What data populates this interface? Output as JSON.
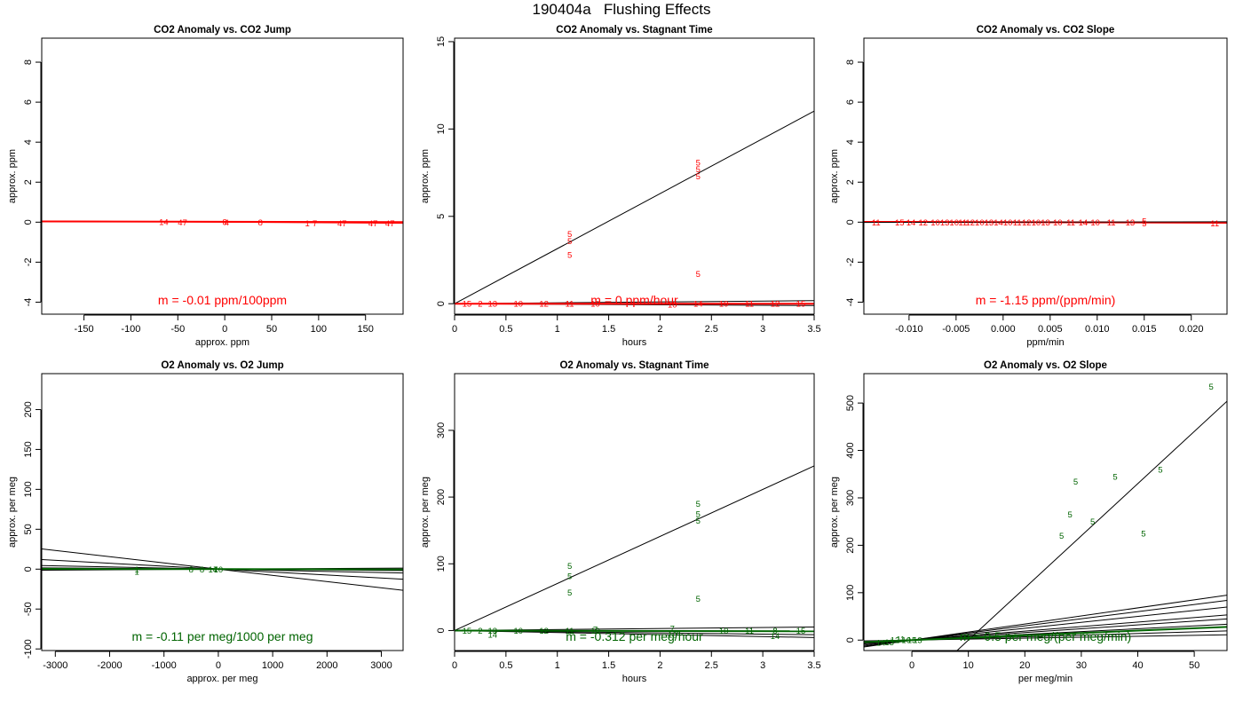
{
  "figure": {
    "title": "190404a   Flushing Effects",
    "colors": {
      "co2": "#ff0000",
      "o2": "#006400",
      "fit": "#000000"
    }
  },
  "chart_data": [
    {
      "type": "scatter",
      "title": "CO2 Anomaly vs. CO2 Jump",
      "xlabel": "approx. ppm",
      "ylabel": "approx. ppm",
      "xlim": [
        -195,
        190
      ],
      "ylim": [
        -4.6,
        9.2
      ],
      "xticks": [
        -150,
        -100,
        -50,
        0,
        50,
        100,
        150
      ],
      "yticks": [
        -4,
        -2,
        0,
        2,
        4,
        6,
        8
      ],
      "annotation": "m = -0.01 ppm/100ppm",
      "color": "#ff0000",
      "points": [
        {
          "x": -65,
          "y": 0.02,
          "label": "14"
        },
        {
          "x": -45,
          "y": 0.0,
          "label": "47"
        },
        {
          "x": 0,
          "y": 0.02,
          "label": "8"
        },
        {
          "x": 2,
          "y": 0.0,
          "label": "4"
        },
        {
          "x": 38,
          "y": 0.0,
          "label": "8"
        },
        {
          "x": 88,
          "y": -0.05,
          "label": "1"
        },
        {
          "x": 96,
          "y": -0.05,
          "label": "7"
        },
        {
          "x": 125,
          "y": -0.05,
          "label": "47"
        },
        {
          "x": 158,
          "y": -0.05,
          "label": "47"
        },
        {
          "x": 176,
          "y": -0.05,
          "label": "47"
        }
      ],
      "lines": [
        {
          "intercept": 0.02,
          "slope": -0.0001,
          "color": "#ff0000",
          "width": 2
        },
        {
          "intercept": 0.0,
          "slope": -0.0003,
          "color": "#ff0000",
          "width": 1
        }
      ]
    },
    {
      "type": "scatter",
      "title": "CO2 Anomaly vs. Stagnant Time",
      "xlabel": "hours",
      "ylabel": "approx. ppm",
      "xlim": [
        0,
        3.5
      ],
      "ylim": [
        -0.6,
        15.2
      ],
      "xticks": [
        0.0,
        0.5,
        1.0,
        1.5,
        2.0,
        2.5,
        3.0,
        3.5
      ],
      "yticks": [
        0,
        5,
        10,
        15
      ],
      "annotation": "m = 0 ppm/hour",
      "color": "#ff0000",
      "points": [
        {
          "x": 2.37,
          "y": 8.1,
          "label": "5"
        },
        {
          "x": 2.37,
          "y": 7.7,
          "label": "5"
        },
        {
          "x": 2.37,
          "y": 7.3,
          "label": "5"
        },
        {
          "x": 1.12,
          "y": 4.0,
          "label": "5"
        },
        {
          "x": 1.12,
          "y": 3.6,
          "label": "5"
        },
        {
          "x": 1.12,
          "y": 2.8,
          "label": "5"
        },
        {
          "x": 2.37,
          "y": 1.7,
          "label": "5"
        },
        {
          "x": 0.12,
          "y": 0.0,
          "label": "15"
        },
        {
          "x": 0.25,
          "y": 0.0,
          "label": "2"
        },
        {
          "x": 0.37,
          "y": 0.0,
          "label": "13"
        },
        {
          "x": 0.62,
          "y": 0.0,
          "label": "10"
        },
        {
          "x": 0.87,
          "y": 0.0,
          "label": "12"
        },
        {
          "x": 1.12,
          "y": 0.0,
          "label": "11"
        },
        {
          "x": 1.37,
          "y": 0.0,
          "label": "10"
        },
        {
          "x": 2.12,
          "y": -0.05,
          "label": "10"
        },
        {
          "x": 2.37,
          "y": 0.0,
          "label": "14"
        },
        {
          "x": 2.62,
          "y": 0.0,
          "label": "10"
        },
        {
          "x": 2.87,
          "y": 0.0,
          "label": "11"
        },
        {
          "x": 3.12,
          "y": 0.0,
          "label": "12"
        },
        {
          "x": 3.37,
          "y": 0.0,
          "label": "15"
        }
      ],
      "lines": [
        {
          "intercept": 0.0,
          "slope": 3.15,
          "color": "#000000",
          "width": 1
        },
        {
          "intercept": 0.0,
          "slope": 0.05,
          "color": "#000000",
          "width": 1
        },
        {
          "intercept": 0.0,
          "slope": -0.03,
          "color": "#000000",
          "width": 1
        },
        {
          "intercept": 0.0,
          "slope": 0.0,
          "color": "#ff0000",
          "width": 2
        }
      ]
    },
    {
      "type": "scatter",
      "title": "CO2 Anomaly vs. CO2 Slope",
      "xlabel": "ppm/min",
      "ylabel": "approx. ppm",
      "xlim": [
        -0.0148,
        0.0238
      ],
      "ylim": [
        -4.6,
        9.2
      ],
      "xticks": [
        -0.01,
        -0.005,
        0.0,
        0.005,
        0.01,
        0.015,
        0.02
      ],
      "xticklabels": [
        "-0.010",
        "-0.005",
        "0.000",
        "0.005",
        "0.010",
        "0.015",
        "0.020"
      ],
      "yticks": [
        -4,
        -2,
        0,
        2,
        4,
        6,
        8
      ],
      "annotation": "m = -1.15 ppm/(ppm/min)",
      "color": "#ff0000",
      "points": [
        {
          "x": -0.0135,
          "y": 0.0,
          "label": "11"
        },
        {
          "x": -0.011,
          "y": 0.0,
          "label": "15"
        },
        {
          "x": -0.0098,
          "y": 0.0,
          "label": "14"
        },
        {
          "x": -0.0085,
          "y": 0.0,
          "label": "12"
        },
        {
          "x": -0.0072,
          "y": 0.0,
          "label": "10"
        },
        {
          "x": -0.0062,
          "y": 0.0,
          "label": "13"
        },
        {
          "x": -0.0052,
          "y": 0.0,
          "label": "10"
        },
        {
          "x": -0.0043,
          "y": 0.0,
          "label": "11"
        },
        {
          "x": -0.0035,
          "y": 0.0,
          "label": "12"
        },
        {
          "x": -0.0025,
          "y": 0.0,
          "label": "10"
        },
        {
          "x": -0.0015,
          "y": 0.0,
          "label": "13"
        },
        {
          "x": -0.0005,
          "y": 0.0,
          "label": "14"
        },
        {
          "x": 0.0005,
          "y": 0.0,
          "label": "10"
        },
        {
          "x": 0.0015,
          "y": 0.0,
          "label": "11"
        },
        {
          "x": 0.0025,
          "y": 0.0,
          "label": "12"
        },
        {
          "x": 0.0035,
          "y": 0.0,
          "label": "10"
        },
        {
          "x": 0.0045,
          "y": 0.0,
          "label": "13"
        },
        {
          "x": 0.0058,
          "y": 0.0,
          "label": "10"
        },
        {
          "x": 0.0072,
          "y": 0.0,
          "label": "11"
        },
        {
          "x": 0.0085,
          "y": 0.0,
          "label": "14"
        },
        {
          "x": 0.0098,
          "y": 0.0,
          "label": "10"
        },
        {
          "x": 0.0115,
          "y": 0.0,
          "label": "11"
        },
        {
          "x": 0.0135,
          "y": 0.0,
          "label": "13"
        },
        {
          "x": 0.015,
          "y": 0.05,
          "label": "5"
        },
        {
          "x": 0.015,
          "y": -0.05,
          "label": "5"
        },
        {
          "x": 0.0225,
          "y": -0.05,
          "label": "11"
        }
      ],
      "lines": [
        {
          "intercept": 0.0,
          "slope": -1.15,
          "color": "#ff0000",
          "width": 2
        },
        {
          "intercept": 0.0,
          "slope": 0.8,
          "color": "#000000",
          "width": 1
        }
      ]
    },
    {
      "type": "scatter",
      "title": "O2 Anomaly vs. O2 Jump",
      "xlabel": "approx. per meg",
      "ylabel": "approx. per meg",
      "xlim": [
        -3250,
        3400
      ],
      "ylim": [
        -102,
        245
      ],
      "xticks": [
        -3000,
        -2000,
        -1000,
        0,
        1000,
        2000,
        3000
      ],
      "yticks": [
        -100,
        -50,
        0,
        50,
        100,
        150,
        200
      ],
      "annotation": "m = -0.11 per meg/1000 per meg",
      "color": "#006400",
      "points": [
        {
          "x": -1500,
          "y": 0.0,
          "label": "1"
        },
        {
          "x": -1500,
          "y": -3.0,
          "label": "1"
        },
        {
          "x": -500,
          "y": 0.0,
          "label": "8"
        },
        {
          "x": -300,
          "y": 0.0,
          "label": "8"
        },
        {
          "x": -100,
          "y": 0.0,
          "label": "14"
        },
        {
          "x": -50,
          "y": 0.0,
          "label": "7"
        },
        {
          "x": 0,
          "y": 0.0,
          "label": "10"
        }
      ],
      "lines": [
        {
          "intercept": 0.0,
          "slope": -0.0078,
          "color": "#000000",
          "width": 1
        },
        {
          "intercept": 0.0,
          "slope": -0.0037,
          "color": "#000000",
          "width": 1
        },
        {
          "intercept": 0.0,
          "slope": -0.0014,
          "color": "#000000",
          "width": 1
        },
        {
          "intercept": 0.0,
          "slope": -0.0005,
          "color": "#000000",
          "width": 1
        },
        {
          "intercept": 0.0,
          "slope": 0.0004,
          "color": "#000000",
          "width": 1
        },
        {
          "intercept": 0.0,
          "slope": -0.00011,
          "color": "#006400",
          "width": 2
        }
      ]
    },
    {
      "type": "scatter",
      "title": "O2 Anomaly vs. Stagnant Time",
      "xlabel": "hours",
      "ylabel": "approx. per meg",
      "xlim": [
        0,
        3.5
      ],
      "ylim": [
        -30,
        385
      ],
      "xticks": [
        0.0,
        0.5,
        1.0,
        1.5,
        2.0,
        2.5,
        3.0,
        3.5
      ],
      "yticks": [
        0,
        100,
        200,
        300
      ],
      "annotation": "m = -0.312 per meg/hour",
      "color": "#006400",
      "points": [
        {
          "x": 2.37,
          "y": 190,
          "label": "5"
        },
        {
          "x": 2.37,
          "y": 175,
          "label": "5"
        },
        {
          "x": 2.37,
          "y": 165,
          "label": "5"
        },
        {
          "x": 1.12,
          "y": 97,
          "label": "5"
        },
        {
          "x": 1.12,
          "y": 82,
          "label": "5"
        },
        {
          "x": 1.12,
          "y": 57,
          "label": "5"
        },
        {
          "x": 2.37,
          "y": 48,
          "label": "5"
        },
        {
          "x": 0.12,
          "y": 0,
          "label": "15"
        },
        {
          "x": 0.25,
          "y": 0,
          "label": "2"
        },
        {
          "x": 0.37,
          "y": 0,
          "label": "13"
        },
        {
          "x": 0.37,
          "y": -6,
          "label": "14"
        },
        {
          "x": 0.62,
          "y": 0,
          "label": "10"
        },
        {
          "x": 0.87,
          "y": 0,
          "label": "12"
        },
        {
          "x": 1.12,
          "y": 0,
          "label": "11"
        },
        {
          "x": 1.37,
          "y": 0,
          "label": "10"
        },
        {
          "x": 1.37,
          "y": 2,
          "label": "7"
        },
        {
          "x": 2.12,
          "y": 3,
          "label": "7"
        },
        {
          "x": 2.12,
          "y": -6,
          "label": "10"
        },
        {
          "x": 2.62,
          "y": 0,
          "label": "10"
        },
        {
          "x": 2.87,
          "y": 0,
          "label": "11"
        },
        {
          "x": 3.12,
          "y": 0,
          "label": "8"
        },
        {
          "x": 3.12,
          "y": -8,
          "label": "14"
        },
        {
          "x": 3.37,
          "y": 0,
          "label": "15"
        }
      ],
      "lines": [
        {
          "intercept": 0.0,
          "slope": 70.5,
          "color": "#000000",
          "width": 1
        },
        {
          "intercept": 0.0,
          "slope": 1.5,
          "color": "#000000",
          "width": 1
        },
        {
          "intercept": 0.0,
          "slope": -1.8,
          "color": "#000000",
          "width": 1
        },
        {
          "intercept": 0.0,
          "slope": -3.0,
          "color": "#000000",
          "width": 1
        },
        {
          "intercept": 0.0,
          "slope": -0.312,
          "color": "#006400",
          "width": 2
        }
      ]
    },
    {
      "type": "scatter",
      "title": "O2 Anomaly vs. O2 Slope",
      "xlabel": "per meg/min",
      "ylabel": "approx. per meg",
      "xlim": [
        -8.5,
        55.8
      ],
      "ylim": [
        -22,
        562
      ],
      "xticks": [
        0,
        10,
        20,
        30,
        40,
        50
      ],
      "yticks": [
        0,
        100,
        200,
        300,
        400,
        500
      ],
      "annotation": "m = 0.5 per meg/(per meg/min)",
      "color": "#006400",
      "points": [
        {
          "x": 53,
          "y": 535,
          "label": "5"
        },
        {
          "x": 44,
          "y": 360,
          "label": "5"
        },
        {
          "x": 36,
          "y": 345,
          "label": "5"
        },
        {
          "x": 29,
          "y": 335,
          "label": "5"
        },
        {
          "x": 28,
          "y": 265,
          "label": "5"
        },
        {
          "x": 32,
          "y": 250,
          "label": "5"
        },
        {
          "x": 26.5,
          "y": 220,
          "label": "5"
        },
        {
          "x": 41,
          "y": 225,
          "label": "5"
        },
        {
          "x": -5.5,
          "y": -5,
          "label": "14"
        },
        {
          "x": -4,
          "y": -4,
          "label": "13"
        },
        {
          "x": -3,
          "y": 0,
          "label": "12"
        },
        {
          "x": -2,
          "y": 2,
          "label": "11"
        },
        {
          "x": -1,
          "y": 0,
          "label": "10"
        },
        {
          "x": 0,
          "y": 0,
          "label": "15"
        },
        {
          "x": 1,
          "y": 0,
          "label": "13"
        }
      ],
      "lines": [
        {
          "intercept": -110,
          "slope": 11.0,
          "color": "#000000",
          "width": 1
        },
        {
          "intercept": 0.0,
          "slope": 1.7,
          "color": "#000000",
          "width": 1
        },
        {
          "intercept": 0.0,
          "slope": 1.5,
          "color": "#000000",
          "width": 1
        },
        {
          "intercept": 0.0,
          "slope": 1.25,
          "color": "#000000",
          "width": 1
        },
        {
          "intercept": 0.0,
          "slope": 0.95,
          "color": "#000000",
          "width": 1
        },
        {
          "intercept": 0.0,
          "slope": 0.8,
          "color": "#000000",
          "width": 1
        },
        {
          "intercept": 0.0,
          "slope": 0.6,
          "color": "#000000",
          "width": 1
        },
        {
          "intercept": 0.0,
          "slope": 0.35,
          "color": "#000000",
          "width": 1
        },
        {
          "intercept": 0.0,
          "slope": 0.2,
          "color": "#000000",
          "width": 1
        },
        {
          "intercept": 0.0,
          "slope": 0.5,
          "color": "#006400",
          "width": 2
        }
      ]
    }
  ]
}
